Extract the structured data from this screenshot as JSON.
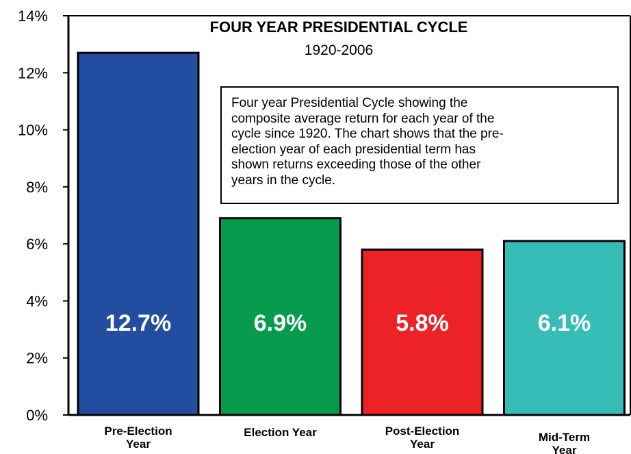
{
  "chart_data": {
    "type": "bar",
    "title": "FOUR YEAR PRESIDENTIAL CYCLE",
    "subtitle": "1920-2006",
    "categories": [
      [
        "Pre-Election",
        "Year"
      ],
      [
        "Election Year"
      ],
      [
        "Post-Election",
        "Year"
      ],
      [
        "Mid-Term",
        "Year"
      ]
    ],
    "values": [
      12.7,
      6.9,
      5.8,
      6.1
    ],
    "data_labels": [
      "12.7%",
      "6.9%",
      "5.8%",
      "6.1%"
    ],
    "colors": [
      "#224DA0",
      "#069A4D",
      "#EC2227",
      "#36BDB8"
    ],
    "ylim": [
      0,
      14
    ],
    "yticks": [
      0,
      2,
      4,
      6,
      8,
      10,
      12,
      14
    ],
    "ytick_labels": [
      "0%",
      "2%",
      "4%",
      "6%",
      "8%",
      "10%",
      "12%",
      "14%"
    ],
    "xlabel": "",
    "ylabel": "",
    "grid": false,
    "annotation": {
      "lines": [
        "Four year Presidential Cycle showing the",
        "composite average return for each year of the",
        "cycle since 1920. The chart shows that the pre-",
        "election year of each presidential term has",
        "shown returns exceeding those of the other",
        "years in the cycle."
      ]
    }
  }
}
